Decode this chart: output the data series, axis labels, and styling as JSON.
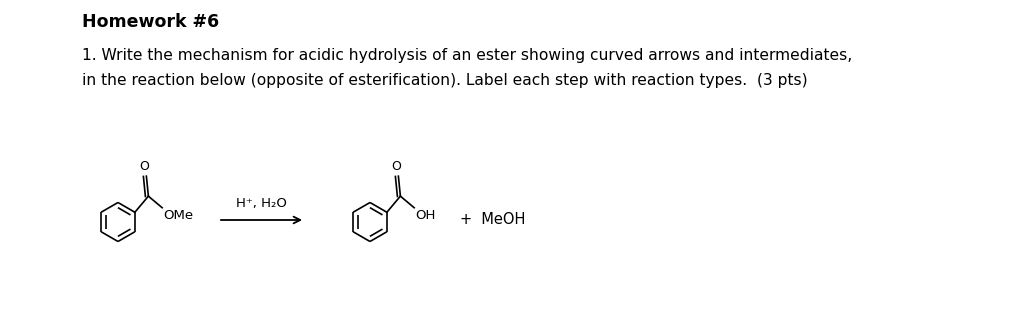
{
  "background_color": "#ffffff",
  "title": "Homework #6",
  "title_fontsize": 12.5,
  "line1": "1. Write the mechanism for acidic hydrolysis of an ester showing curved arrows and intermediates,",
  "line2": "in the reaction below (opposite of esterification). Label each step with reaction types.  (3 pts)",
  "body_fontsize": 11.2,
  "reagent_label": "H⁺, H₂O",
  "reagent_fontsize": 9.5,
  "product2_label": "+  MeOH",
  "product2_fontsize": 10.5,
  "ome_label": "OMe",
  "oh_label": "OH",
  "o_label": "O"
}
